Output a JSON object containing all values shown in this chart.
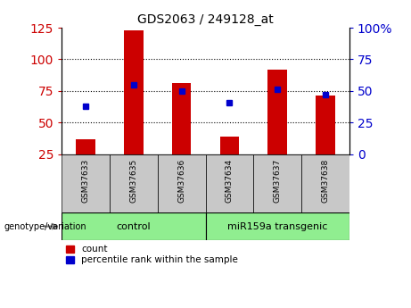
{
  "title": "GDS2063 / 249128_at",
  "samples": [
    "GSM37633",
    "GSM37635",
    "GSM37636",
    "GSM37634",
    "GSM37637",
    "GSM37638"
  ],
  "counts": [
    37,
    123,
    81,
    39,
    92,
    71
  ],
  "percentile_ranks": [
    38,
    55,
    50,
    41,
    51,
    47
  ],
  "groups": [
    {
      "label": "control",
      "indices": [
        0,
        1,
        2
      ],
      "color": "#90EE90"
    },
    {
      "label": "miR159a transgenic",
      "indices": [
        3,
        4,
        5
      ],
      "color": "#90EE90"
    }
  ],
  "bar_color": "#CC0000",
  "dot_color": "#0000CC",
  "left_ylim": [
    25,
    125
  ],
  "left_yticks": [
    25,
    50,
    75,
    100,
    125
  ],
  "right_ylim": [
    0,
    100
  ],
  "right_yticks": [
    0,
    25,
    50,
    75,
    100
  ],
  "right_yticklabels": [
    "0",
    "25",
    "50",
    "75",
    "100%"
  ],
  "left_label_color": "#CC0000",
  "right_label_color": "#0000CC",
  "background_color": "#FFFFFF",
  "plot_bg_color": "#FFFFFF",
  "genotype_label": "genotype/variation",
  "legend_count_label": "count",
  "legend_percentile_label": "percentile rank within the sample"
}
